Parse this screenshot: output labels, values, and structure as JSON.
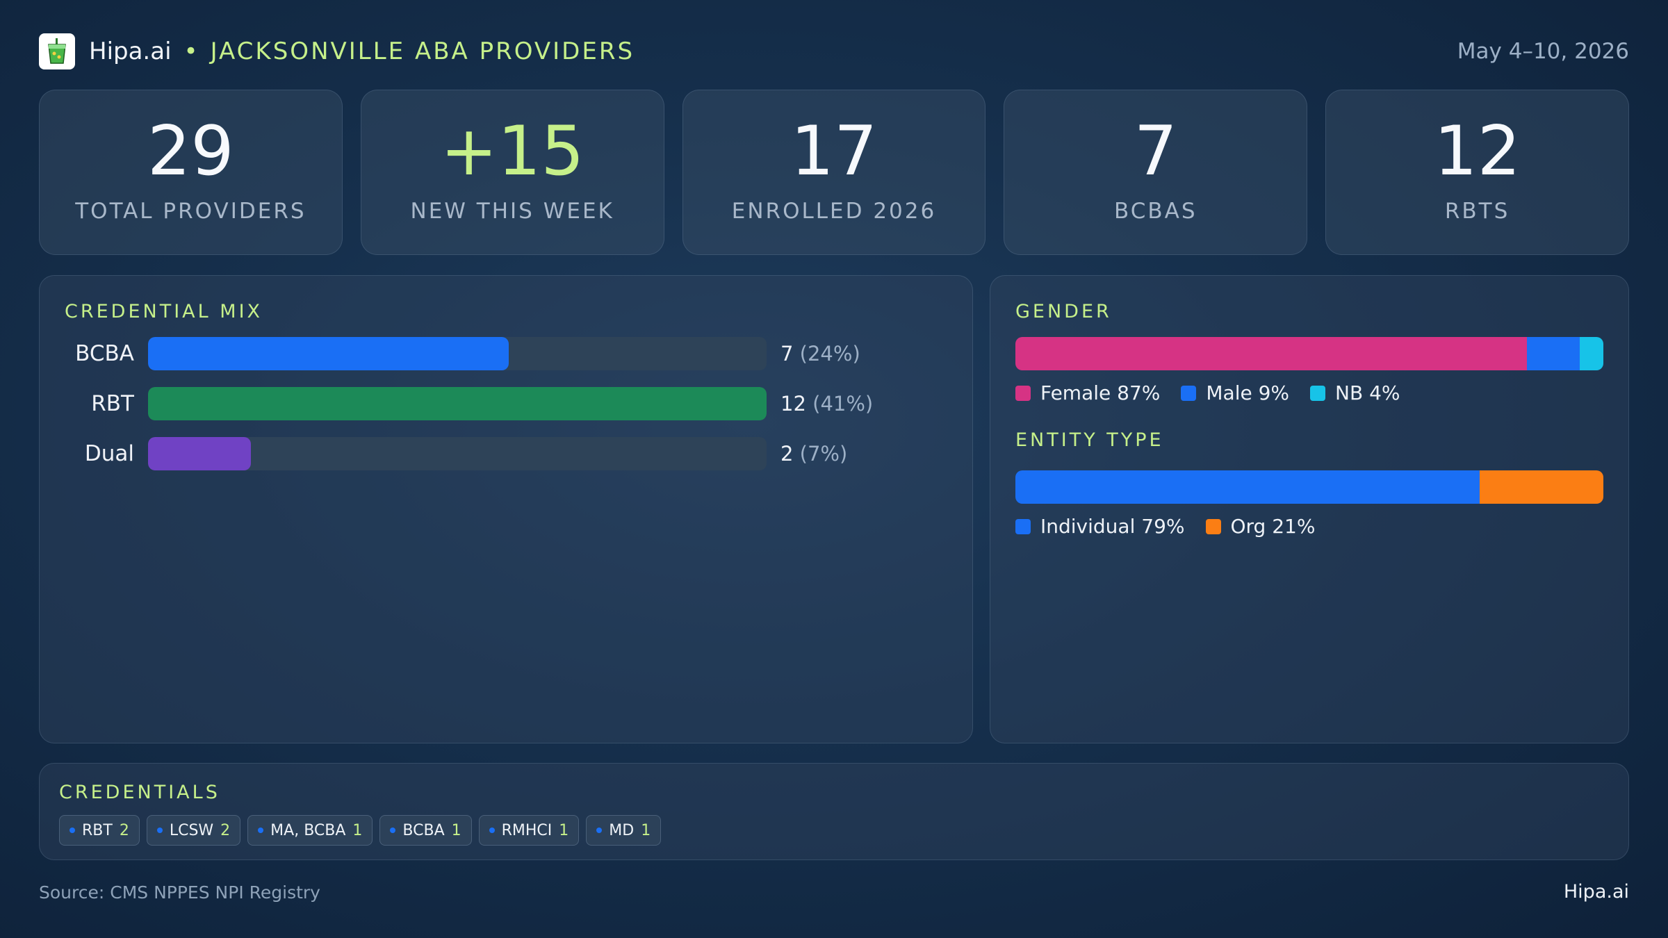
{
  "header": {
    "brand": "Hipa.ai",
    "separator": "•",
    "region": "JACKSONVILLE ABA PROVIDERS",
    "date_range": "May 4–10, 2026",
    "logo_icon": "cup-drink-icon"
  },
  "kpis": [
    {
      "value": "29",
      "label": "TOTAL PROVIDERS",
      "accent": false
    },
    {
      "value": "+15",
      "label": "NEW THIS WEEK",
      "accent": true
    },
    {
      "value": "17",
      "label": "ENROLLED 2026",
      "accent": false
    },
    {
      "value": "7",
      "label": "BCBAS",
      "accent": false
    },
    {
      "value": "12",
      "label": "RBTS",
      "accent": false
    }
  ],
  "colors": {
    "accent": "#c6f08a",
    "bcba": "#1a6ff5",
    "rbt": "#1c8a58",
    "dual": "#7042c4",
    "female": "#d63384",
    "male": "#1a6ff5",
    "nb": "#17c3e8",
    "individual": "#1a6ff5",
    "org": "#fb7e14"
  },
  "chart_data": [
    {
      "type": "bar",
      "orientation": "horizontal",
      "title": "CREDENTIAL MIX",
      "categories": [
        "BCBA",
        "RBT",
        "Dual"
      ],
      "values": [
        7,
        12,
        2
      ],
      "value_labels": [
        "7",
        "12",
        "2"
      ],
      "percent_labels": [
        "(24%)",
        "(41%)",
        "(7%)"
      ],
      "xlim": [
        0,
        12
      ]
    },
    {
      "type": "bar",
      "orientation": "horizontal-stacked",
      "title": "GENDER",
      "categories": [
        "Female",
        "Male",
        "NB"
      ],
      "values": [
        87,
        9,
        4
      ],
      "legend_labels": [
        "Female 87%",
        "Male 9%",
        "NB 4%"
      ],
      "legend": "bottom-left"
    },
    {
      "type": "bar",
      "orientation": "horizontal-stacked",
      "title": "ENTITY TYPE",
      "categories": [
        "Individual",
        "Org"
      ],
      "values": [
        79,
        21
      ],
      "legend_labels": [
        "Individual 79%",
        "Org 21%"
      ],
      "legend": "bottom-left"
    }
  ],
  "credentials": {
    "title": "CREDENTIALS",
    "chips": [
      {
        "label": "RBT",
        "count": "2"
      },
      {
        "label": "LCSW",
        "count": "2"
      },
      {
        "label": "MA, BCBA",
        "count": "1"
      },
      {
        "label": "BCBA",
        "count": "1"
      },
      {
        "label": "RMHCI",
        "count": "1"
      },
      {
        "label": "MD",
        "count": "1"
      }
    ]
  },
  "footer": {
    "source": "Source: CMS NPPES NPI Registry",
    "brand": "Hipa.ai"
  }
}
